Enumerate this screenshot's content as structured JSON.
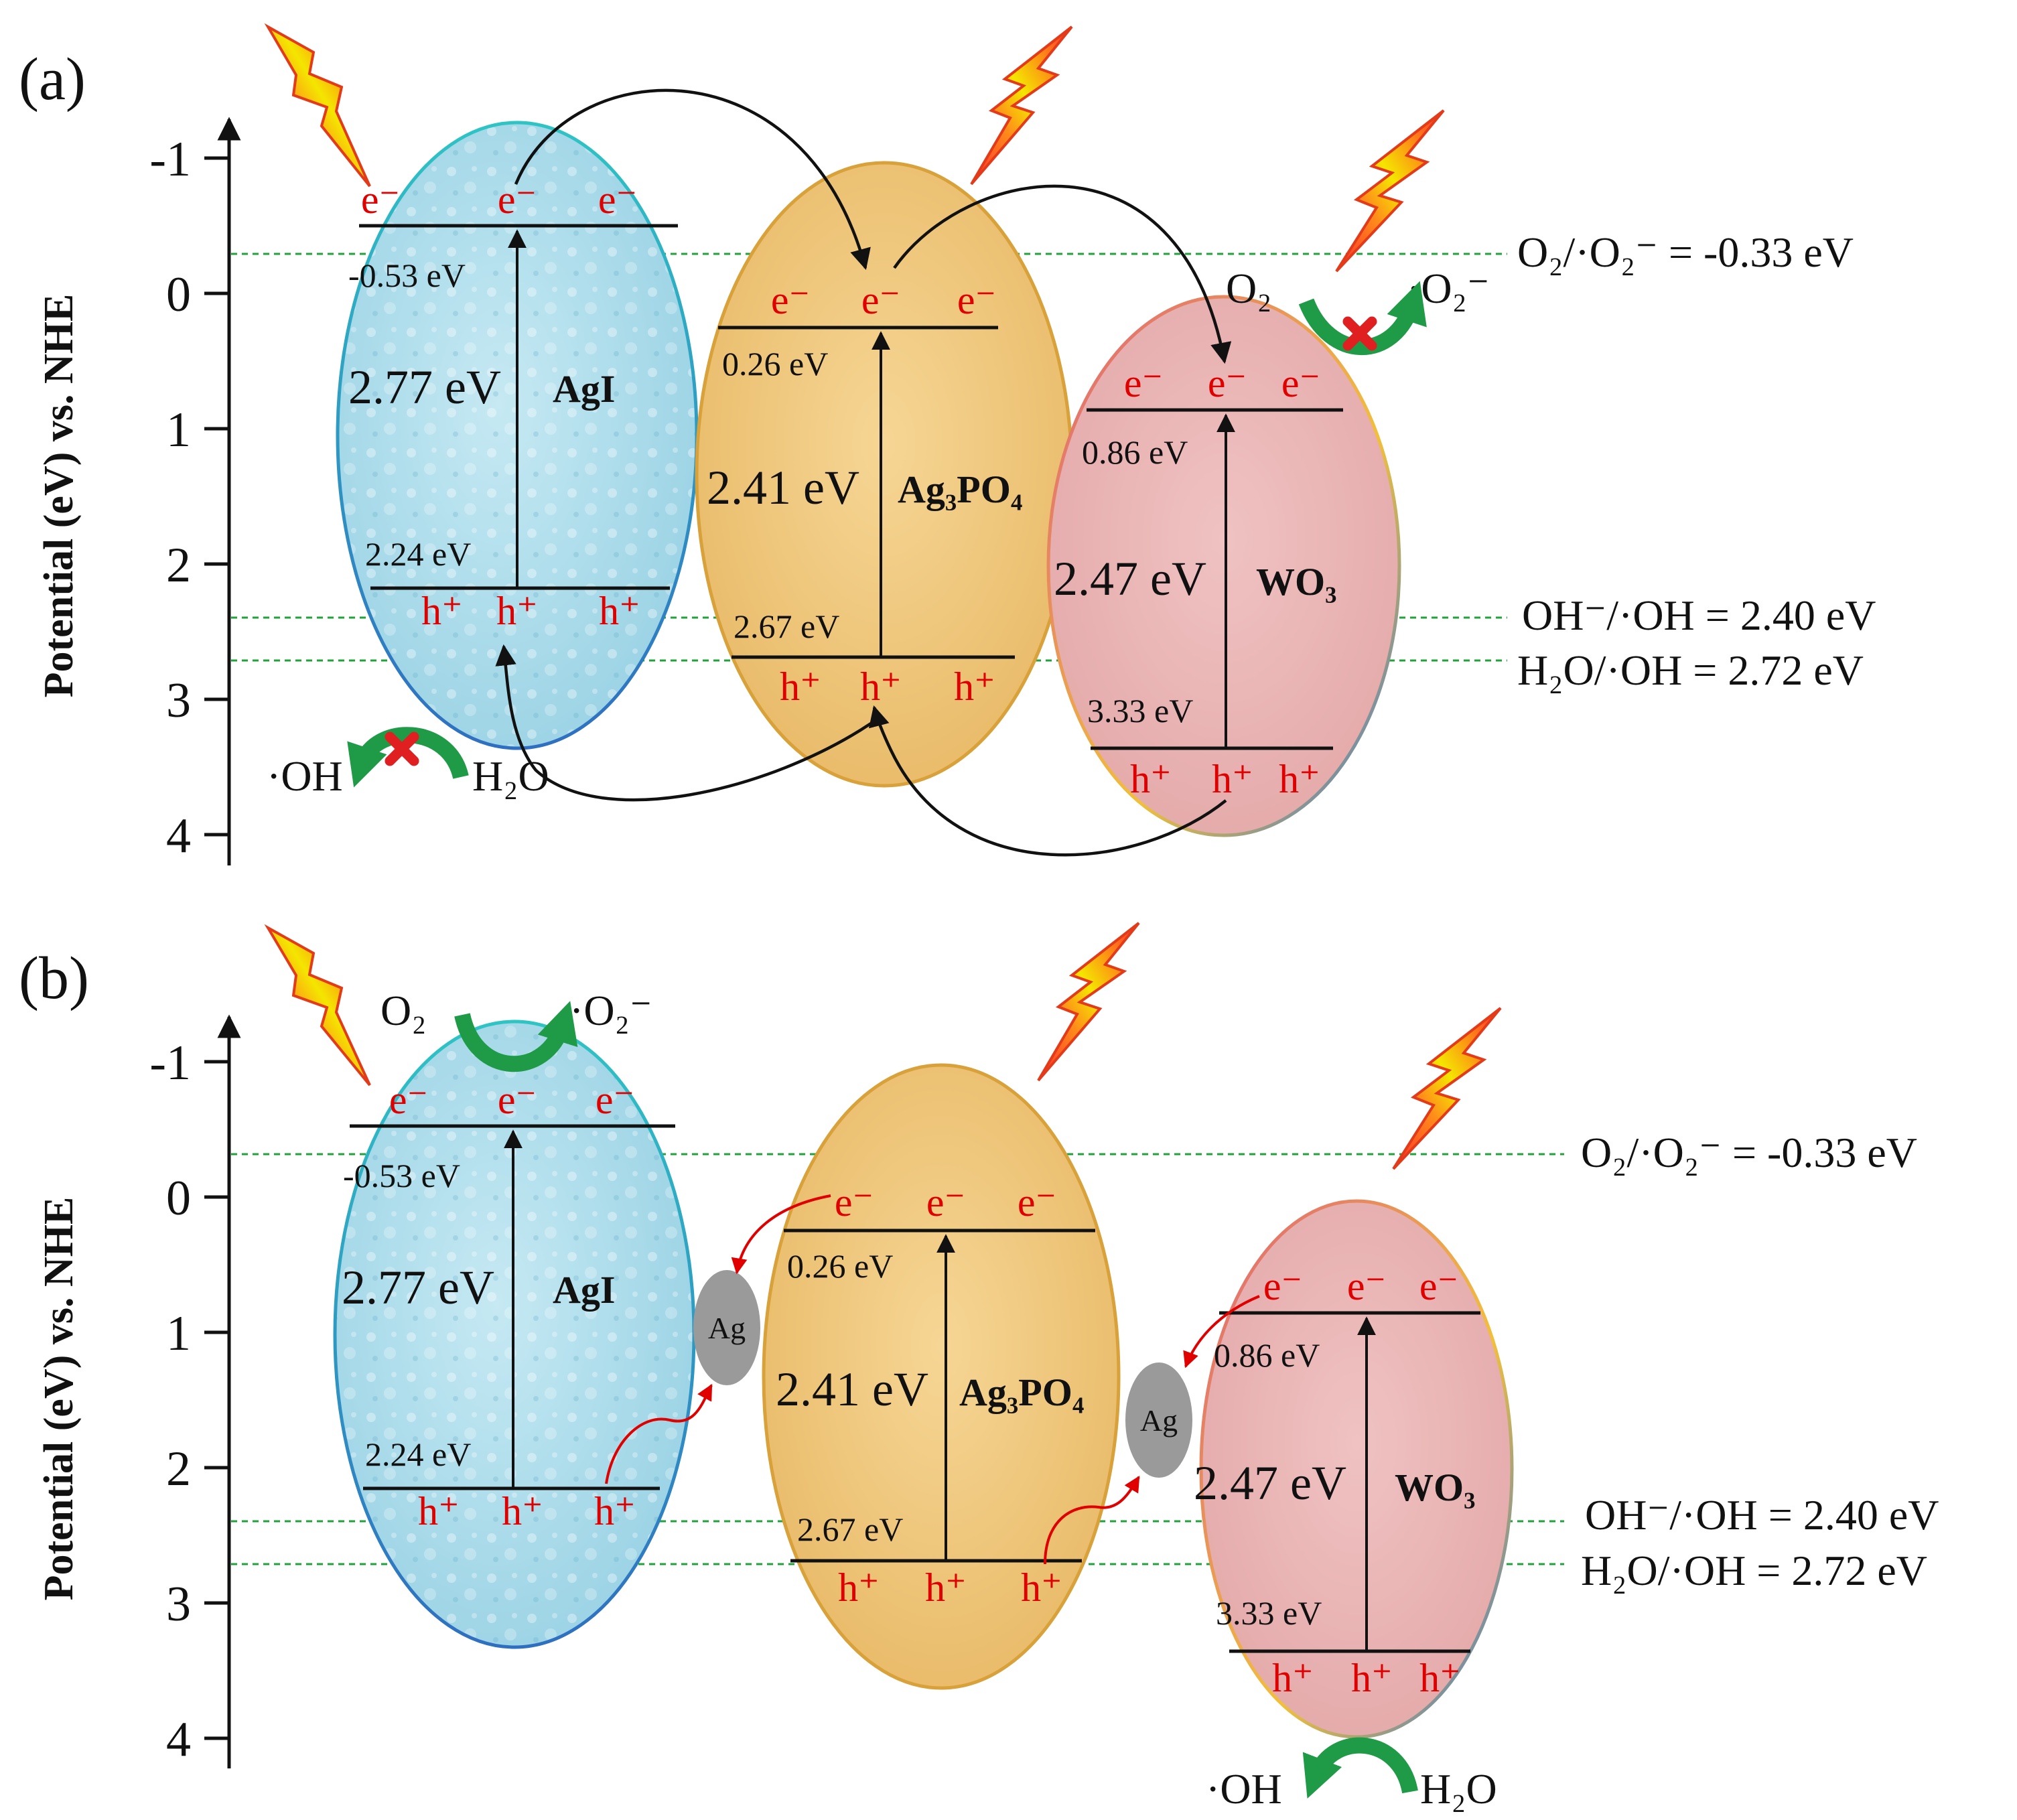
{
  "colors": {
    "agi_fill": "#a9dcea",
    "agi_stroke_top": "#2ec4c4",
    "agi_stroke_bottom": "#2f6fc1",
    "ag3po4_fill": "#f0c878",
    "ag3po4_stroke": "#d8a13a",
    "wo3_fill": "#eab3b3",
    "wo3_stroke": "#e0607a",
    "electron": "#e00000",
    "reference_line": "#1fa33a",
    "reaction_arrow": "#1f9a47",
    "blocked_mark": "#e02020",
    "ag_particle": "#9a9a9a"
  },
  "shared": {
    "axis_title": "Potential (eV) vs. NHE",
    "ticks": [
      "-1",
      "0",
      "1",
      "2",
      "3",
      "4"
    ],
    "electron_label": "e⁻",
    "hole_label": "h⁺",
    "references": {
      "o2": "O₂/·O₂⁻ = -0.33 eV",
      "oh": "OH⁻/·OH = 2.40 eV",
      "h2o": "H₂O/·OH = 2.72 eV"
    },
    "semiconductors": {
      "agi": {
        "name": "AgI",
        "cb": "-0.53 eV",
        "vb": "2.24 eV",
        "gap": "2.77 eV"
      },
      "ag3po4": {
        "name": "Ag₃PO₄",
        "cb": "0.26 eV",
        "vb": "2.67 eV",
        "gap": "2.41 eV"
      },
      "wo3": {
        "name": "WO₃",
        "cb": "0.86 eV",
        "vb": "3.33 eV",
        "gap": "2.47 eV"
      }
    },
    "species": {
      "o2": "O₂",
      "superoxide": "·O₂⁻",
      "hydroxyl": "·OH",
      "water": "H₂O"
    },
    "ag_label": "Ag"
  },
  "panel_a": {
    "label": "(a)"
  },
  "panel_b": {
    "label": "(b)"
  },
  "chart_data": [
    {
      "type": "diagram",
      "panel": "(a)",
      "ylabel": "Potential (eV) vs. NHE",
      "yticks": [
        -1,
        0,
        1,
        2,
        3,
        4
      ],
      "y_inverted": true,
      "semiconductors": [
        {
          "name": "AgI",
          "cb": -0.53,
          "vb": 2.24,
          "gap": 2.77
        },
        {
          "name": "Ag₃PO₄",
          "cb": 0.26,
          "vb": 2.67,
          "gap": 2.41
        },
        {
          "name": "WO₃",
          "cb": 0.86,
          "vb": 3.33,
          "gap": 2.47
        }
      ],
      "reference_levels": [
        {
          "label": "O₂/·O₂⁻",
          "value": -0.33
        },
        {
          "label": "OH⁻/·OH",
          "value": 2.4
        },
        {
          "label": "H₂O/·OH",
          "value": 2.72
        }
      ],
      "blocked_reactions": [
        "O₂ → ·O₂⁻ on WO₃",
        "H₂O → ·OH on AgI"
      ]
    },
    {
      "type": "diagram",
      "panel": "(b)",
      "ylabel": "Potential (eV) vs. NHE",
      "yticks": [
        -1,
        0,
        1,
        2,
        3,
        4
      ],
      "y_inverted": true,
      "semiconductors": [
        {
          "name": "AgI",
          "cb": -0.53,
          "vb": 2.24,
          "gap": 2.77
        },
        {
          "name": "Ag₃PO₄",
          "cb": 0.26,
          "vb": 2.67,
          "gap": 2.41
        },
        {
          "name": "WO₃",
          "cb": 0.86,
          "vb": 3.33,
          "gap": 2.47
        }
      ],
      "reference_levels": [
        {
          "label": "O₂/·O₂⁻",
          "value": -0.33
        },
        {
          "label": "OH⁻/·OH",
          "value": 2.4
        },
        {
          "label": "H₂O/·OH",
          "value": 2.72
        }
      ],
      "mediators": [
        "Ag",
        "Ag"
      ],
      "active_reactions": [
        "O₂ → ·O₂⁻ on AgI",
        "H₂O → ·OH on WO₃"
      ]
    }
  ]
}
